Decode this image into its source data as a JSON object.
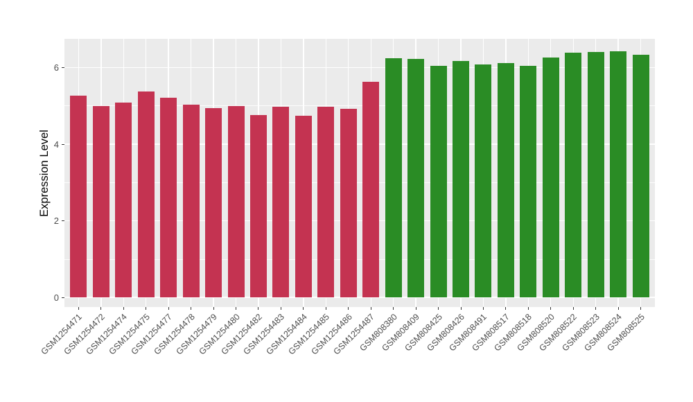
{
  "figure": {
    "background": "#FFFFFF",
    "panel_background": "#EBEBEB",
    "grid_color": "#FFFFFF",
    "axis_text_color": "#4D4D4D",
    "axis_title_color": "#000000"
  },
  "chart_data": {
    "type": "bar",
    "title": "",
    "xlabel": "",
    "ylabel": "Expression Level",
    "ylim": [
      -0.25,
      6.75
    ],
    "yticks": [
      0,
      2,
      4,
      6
    ],
    "yminorticks": [
      1,
      3,
      5
    ],
    "grid": "on",
    "legend_position": "none",
    "categories": [
      "GSM1254471",
      "GSM1254472",
      "GSM1254474",
      "GSM1254475",
      "GSM1254477",
      "GSM1254478",
      "GSM1254479",
      "GSM1254480",
      "GSM1254482",
      "GSM1254483",
      "GSM1254484",
      "GSM1254485",
      "GSM1254486",
      "GSM1254487",
      "GSM808380",
      "GSM808409",
      "GSM808425",
      "GSM808426",
      "GSM808491",
      "GSM808517",
      "GSM808518",
      "GSM808520",
      "GSM808522",
      "GSM808523",
      "GSM808524",
      "GSM808525"
    ],
    "values": [
      5.27,
      4.99,
      5.08,
      5.38,
      5.21,
      5.03,
      4.95,
      5.0,
      4.76,
      4.98,
      4.74,
      4.98,
      4.92,
      5.62,
      6.25,
      6.23,
      6.04,
      6.18,
      6.08,
      6.12,
      6.05,
      6.27,
      6.38,
      6.4,
      6.43,
      6.33
    ],
    "groups": [
      0,
      0,
      0,
      0,
      0,
      0,
      0,
      0,
      0,
      0,
      0,
      0,
      0,
      0,
      1,
      1,
      1,
      1,
      1,
      1,
      1,
      1,
      1,
      1,
      1,
      1
    ],
    "group_colors": [
      "#C43351",
      "#2A8C25"
    ]
  }
}
